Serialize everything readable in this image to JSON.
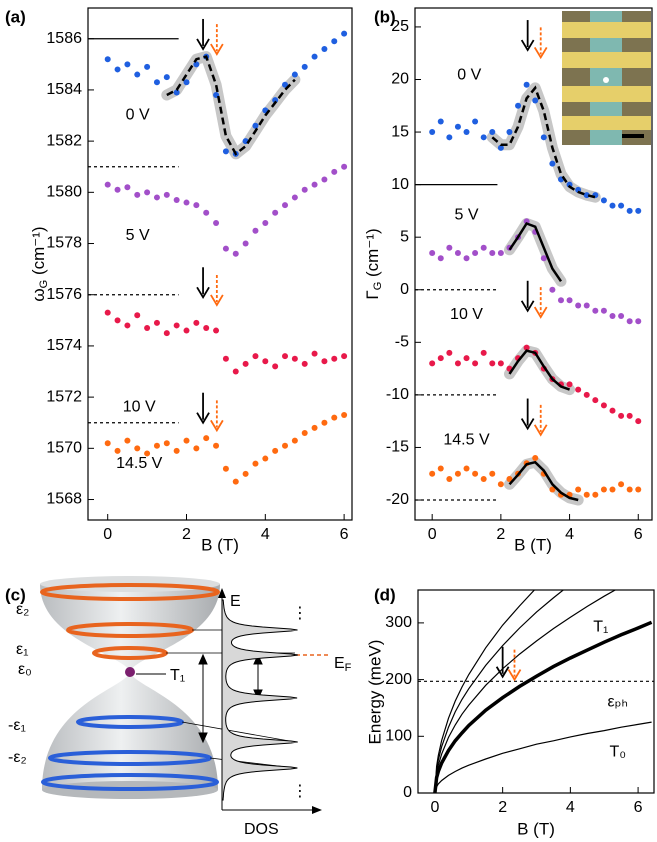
{
  "chart_data": [
    {
      "type": "scatter",
      "panel_label": "(a)",
      "xlabel": "B (T)",
      "ylabel": {
        "base": "ω",
        "sub": "G",
        "rest": " (cm⁻¹)"
      },
      "xlim": [
        -0.5,
        6.2
      ],
      "ylim": [
        1567.2,
        1587.2
      ],
      "xticks": [
        0,
        2,
        4,
        6
      ],
      "yticks": [
        1568,
        1570,
        1572,
        1574,
        1576,
        1578,
        1580,
        1582,
        1584,
        1586
      ],
      "x": [
        0,
        0.25,
        0.5,
        0.75,
        1,
        1.25,
        1.5,
        1.75,
        2,
        2.25,
        2.5,
        2.75,
        3,
        3.25,
        3.5,
        3.75,
        4,
        4.25,
        4.5,
        4.75,
        5,
        5.25,
        5.5,
        5.75,
        6
      ],
      "series": [
        {
          "color": "#1f5fe0",
          "values": [
            1585.2,
            1584.8,
            1585.0,
            1584.6,
            1584.9,
            1584.3,
            1584.5,
            1583.9,
            1584.3,
            1585.0,
            1585.3,
            1583.8,
            1581.6,
            1581.5,
            1582.0,
            1582.6,
            1583.2,
            1583.6,
            1584.2,
            1584.6,
            1584.9,
            1585.3,
            1585.6,
            1585.9,
            1586.2
          ]
        },
        {
          "color": "#a24fc9",
          "values": [
            1580.3,
            1580.1,
            1580.2,
            1579.9,
            1580.0,
            1579.8,
            1579.9,
            1579.7,
            1579.6,
            1579.5,
            1579.2,
            1578.8,
            1577.8,
            1577.6,
            1578.0,
            1578.5,
            1578.8,
            1579.2,
            1579.5,
            1579.8,
            1580.1,
            1580.3,
            1580.5,
            1580.8,
            1581.0
          ]
        },
        {
          "color": "#e8194a",
          "values": [
            1575.3,
            1575.0,
            1574.8,
            1575.2,
            1574.7,
            1574.9,
            1574.5,
            1574.8,
            1574.6,
            1574.9,
            1574.7,
            1574.6,
            1573.5,
            1573.0,
            1573.3,
            1573.6,
            1573.4,
            1573.2,
            1573.6,
            1573.5,
            1573.3,
            1573.7,
            1573.4,
            1573.5,
            1573.6
          ]
        },
        {
          "color": "#ff6a10",
          "values": [
            1570.2,
            1569.9,
            1570.3,
            1570.0,
            1569.8,
            1570.1,
            1570.2,
            1569.9,
            1570.3,
            1570.0,
            1570.4,
            1570.1,
            1569.2,
            1568.7,
            1569.0,
            1569.4,
            1569.6,
            1569.9,
            1570.1,
            1570.3,
            1570.6,
            1570.8,
            1571.0,
            1571.2,
            1571.3
          ]
        }
      ],
      "fits": [
        {
          "color": "#000000",
          "dashed": true,
          "band": true,
          "x": [
            1.5,
            1.75,
            2,
            2.25,
            2.5,
            2.75,
            3,
            3.25,
            3.5,
            3.75,
            4,
            4.25,
            4.5,
            4.75
          ],
          "values": [
            1583.8,
            1584.0,
            1584.6,
            1585.2,
            1585.3,
            1584.2,
            1582.2,
            1581.5,
            1581.8,
            1582.4,
            1583.0,
            1583.5,
            1584.0,
            1584.4
          ]
        }
      ],
      "hlines": [
        {
          "y": 1586,
          "x": [
            -0.5,
            1.8
          ],
          "dashed": false
        },
        {
          "y": 1581,
          "x": [
            -0.5,
            1.8
          ],
          "dashed": true
        },
        {
          "y": 1576,
          "x": [
            -0.5,
            1.8
          ],
          "dashed": true
        },
        {
          "y": 1571,
          "x": [
            -0.5,
            1.8
          ],
          "dashed": true
        }
      ],
      "arrows": [
        {
          "x": 2.42,
          "y": 1585.6,
          "color": "#000000",
          "dashed": false
        },
        {
          "x": 2.77,
          "y": 1585.4,
          "color": "#ff6a10",
          "dashed": true
        },
        {
          "x": 2.42,
          "y": 1575.9,
          "color": "#000000",
          "dashed": false
        },
        {
          "x": 2.77,
          "y": 1575.6,
          "color": "#ff6a10",
          "dashed": true
        },
        {
          "x": 2.42,
          "y": 1571.0,
          "color": "#000000",
          "dashed": false
        },
        {
          "x": 2.77,
          "y": 1570.7,
          "color": "#ff6a10",
          "dashed": true
        }
      ],
      "annotations": [
        {
          "text": "0 V",
          "x": 0.76,
          "y": 1583.0
        },
        {
          "text": "5 V",
          "x": 0.76,
          "y": 1578.3
        },
        {
          "text": "10 V",
          "x": 0.8,
          "y": 1571.6
        },
        {
          "text": "14.5 V",
          "x": 0.8,
          "y": 1569.4
        }
      ]
    },
    {
      "type": "scatter",
      "panel_label": "(b)",
      "xlabel": "B (T)",
      "ylabel": {
        "base": "Γ",
        "sub": "G",
        "rest": " (cm⁻¹)"
      },
      "xlim": [
        -0.5,
        6.4
      ],
      "ylim": [
        -21.9,
        26.8
      ],
      "xticks": [
        0,
        2,
        4,
        6
      ],
      "yticks": [
        -20,
        -15,
        -10,
        -5,
        0,
        5,
        10,
        15,
        20,
        25
      ],
      "x": [
        0,
        0.25,
        0.5,
        0.75,
        1,
        1.25,
        1.5,
        1.75,
        2,
        2.25,
        2.5,
        2.75,
        3,
        3.25,
        3.5,
        3.75,
        4,
        4.25,
        4.5,
        4.75,
        5,
        5.25,
        5.5,
        5.75,
        6
      ],
      "series": [
        {
          "color": "#1f5fe0",
          "values": [
            15,
            16,
            14.5,
            15.5,
            15,
            16,
            14.5,
            15,
            13.5,
            15,
            17.5,
            19.5,
            18,
            14.5,
            12,
            10.5,
            10,
            9.5,
            9,
            9,
            8.5,
            8,
            8,
            7.5,
            7.5
          ]
        },
        {
          "color": "#a24fc9",
          "values": [
            3.5,
            3,
            4,
            3.5,
            3,
            3.5,
            4,
            3.5,
            3.5,
            4,
            5,
            6.5,
            5.5,
            3,
            0,
            -1,
            -1,
            -1.5,
            -1.5,
            -2,
            -2,
            -2.5,
            -2.5,
            -3,
            -3
          ]
        },
        {
          "color": "#e8194a",
          "values": [
            -7,
            -6.5,
            -6,
            -7,
            -6.5,
            -7,
            -6,
            -7,
            -7,
            -7.5,
            -6.5,
            -5.5,
            -6,
            -7.5,
            -8.5,
            -9,
            -9,
            -9.5,
            -10,
            -10.5,
            -11,
            -11.5,
            -12,
            -12,
            -12.5
          ]
        },
        {
          "color": "#ff6a10",
          "values": [
            -17.5,
            -17,
            -18,
            -17.5,
            -17,
            -17.5,
            -18,
            -17.5,
            -18.5,
            -18,
            -17.5,
            -16.5,
            -16,
            -17.5,
            -19,
            -19.5,
            -19.5,
            -19,
            -19.5,
            -19.5,
            -19,
            -19,
            -18.5,
            -19,
            -19
          ]
        }
      ],
      "fits": [
        {
          "color": "#000000",
          "dashed": true,
          "band": true,
          "x": [
            1.75,
            2,
            2.25,
            2.5,
            2.75,
            3,
            3.25,
            3.5,
            3.75,
            4,
            4.25,
            4.5,
            4.75
          ],
          "values": [
            14.5,
            13.8,
            13.8,
            15.5,
            18.2,
            19.2,
            17,
            13.5,
            11,
            9.8,
            9.3,
            9,
            8.8
          ]
        },
        {
          "color": "#000000",
          "dashed": false,
          "band": true,
          "x": [
            2.25,
            2.5,
            2.75,
            3,
            3.25,
            3.5,
            3.75
          ],
          "values": [
            3.8,
            5,
            6.3,
            6,
            4,
            2,
            0.8
          ]
        },
        {
          "color": "#000000",
          "dashed": false,
          "band": true,
          "x": [
            2.25,
            2.5,
            2.75,
            3,
            3.25,
            3.5,
            3.75,
            4
          ],
          "values": [
            -8,
            -6.8,
            -5.8,
            -6,
            -7.3,
            -8.5,
            -9.2,
            -9.5
          ]
        },
        {
          "color": "#000000",
          "dashed": false,
          "band": true,
          "x": [
            2.25,
            2.5,
            2.75,
            3,
            3.25,
            3.5,
            3.75,
            4,
            4.25
          ],
          "values": [
            -18.5,
            -17.6,
            -16.6,
            -16.4,
            -17.2,
            -18.5,
            -19.3,
            -19.8,
            -20
          ]
        }
      ],
      "hlines": [
        {
          "y": 10,
          "x": [
            -0.5,
            1.9
          ],
          "dashed": false
        },
        {
          "y": 0,
          "x": [
            -0.5,
            1.9
          ],
          "dashed": true
        },
        {
          "y": -10,
          "x": [
            -0.5,
            1.9
          ],
          "dashed": true
        },
        {
          "y": -20,
          "x": [
            -0.5,
            1.9
          ],
          "dashed": true
        }
      ],
      "arrows": [
        {
          "x": 2.78,
          "y": 22.8,
          "color": "#000000",
          "dashed": false
        },
        {
          "x": 3.16,
          "y": 22.1,
          "color": "#ff6a10",
          "dashed": true
        },
        {
          "x": 2.78,
          "y": -2.0,
          "color": "#000000",
          "dashed": false
        },
        {
          "x": 3.16,
          "y": -2.6,
          "color": "#ff6a10",
          "dashed": true
        },
        {
          "x": 2.78,
          "y": -13.2,
          "color": "#000000",
          "dashed": false
        },
        {
          "x": 3.16,
          "y": -13.8,
          "color": "#ff6a10",
          "dashed": true
        }
      ],
      "annotations": [
        {
          "text": "0 V",
          "x": 1.08,
          "y": 20.4
        },
        {
          "text": "5 V",
          "x": 1.0,
          "y": 7.1
        },
        {
          "text": "10 V",
          "x": 1.0,
          "y": -2.4
        },
        {
          "text": "14.5 V",
          "x": 1.0,
          "y": -14.3
        }
      ]
    },
    {
      "type": "line",
      "panel_label": "(d)",
      "xlabel": "B (T)",
      "ylabel": "Energy (meV)",
      "xlim": [
        -0.5,
        6.47
      ],
      "ylim": [
        0,
        358
      ],
      "xticks": [
        0,
        2,
        4,
        6
      ],
      "yticks": [
        0,
        100,
        200,
        300
      ],
      "x": [
        0,
        0.05,
        0.1,
        0.2,
        0.4,
        0.6,
        0.8,
        1,
        1.5,
        2,
        2.5,
        3,
        3.5,
        4,
        4.5,
        5,
        5.5,
        6,
        6.4
      ],
      "series": [
        {
          "color": "#000000",
          "width": 1.2,
          "values": [
            0,
            11,
            16,
            22,
            31,
            38,
            44,
            49,
            60,
            70,
            78,
            86,
            92,
            99,
            105,
            110,
            116,
            121,
            125
          ]
        },
        {
          "color": "#000000",
          "width": 3.5,
          "values": [
            0,
            27,
            38,
            53,
            75,
            92,
            106,
            119,
            146,
            168,
            188,
            206,
            223,
            238,
            252,
            266,
            279,
            291,
            301
          ]
        },
        {
          "color": "#000000",
          "width": 1.2,
          "values": [
            0,
            35,
            49,
            69,
            98,
            120,
            139,
            155,
            190,
            219,
            245,
            268,
            290,
            310,
            329,
            347,
            364,
            null,
            null
          ]
        },
        {
          "color": "#000000",
          "width": 1.2,
          "values": [
            0,
            41,
            58,
            82,
            116,
            143,
            165,
            184,
            225,
            260,
            291,
            319,
            344,
            368,
            null,
            null,
            null,
            null,
            null
          ]
        },
        {
          "color": "#000000",
          "width": 1.2,
          "values": [
            0,
            47,
            66,
            93,
            132,
            162,
            187,
            209,
            256,
            296,
            330,
            362,
            null,
            null,
            null,
            null,
            null,
            null,
            null
          ]
        }
      ],
      "hlines": [
        {
          "y": 197,
          "x": [
            -0.5,
            6.47
          ],
          "dashed": true
        }
      ],
      "arrows": [
        {
          "x": 2.0,
          "y": 205,
          "color": "#000000",
          "dashed": false
        },
        {
          "x": 2.35,
          "y": 200,
          "color": "#ff6a10",
          "dashed": true
        }
      ],
      "annotations": [
        {
          "text": "T₁",
          "x": 4.9,
          "y": 292
        },
        {
          "text": "εₚₕ",
          "x": 5.4,
          "y": 160
        },
        {
          "text": "T₀",
          "x": 5.4,
          "y": 72
        }
      ]
    }
  ],
  "diagram": {
    "panel_label": "(c)",
    "levels": [
      "ε₂",
      "ε₁",
      "ε₀",
      "-ε₁",
      "-ε₂"
    ],
    "transition": "T₁",
    "energy_axis": "E",
    "dos_axis": "DOS",
    "fermi": {
      "base": "E",
      "sub": "F"
    },
    "ellipsis": [
      "⋮",
      "⋮"
    ]
  }
}
